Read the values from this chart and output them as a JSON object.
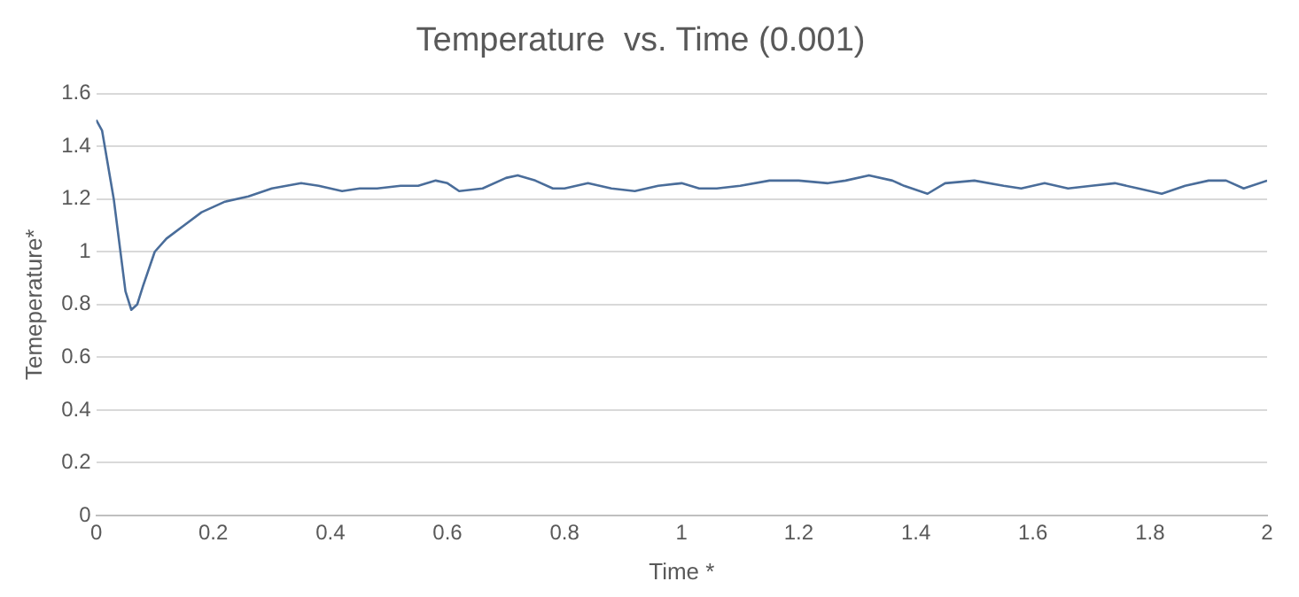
{
  "chart_data": {
    "type": "line",
    "title": "Temperature  vs. Time (0.001)",
    "xlabel": "Time *",
    "ylabel": "Temeperature*",
    "x": [
      0,
      0.01,
      0.03,
      0.05,
      0.06,
      0.07,
      0.08,
      0.1,
      0.12,
      0.15,
      0.18,
      0.22,
      0.26,
      0.3,
      0.35,
      0.38,
      0.42,
      0.45,
      0.48,
      0.52,
      0.55,
      0.58,
      0.6,
      0.62,
      0.66,
      0.7,
      0.72,
      0.75,
      0.78,
      0.8,
      0.84,
      0.88,
      0.92,
      0.96,
      1.0,
      1.03,
      1.06,
      1.1,
      1.15,
      1.2,
      1.25,
      1.28,
      1.32,
      1.36,
      1.38,
      1.42,
      1.45,
      1.5,
      1.55,
      1.58,
      1.62,
      1.66,
      1.7,
      1.74,
      1.78,
      1.82,
      1.86,
      1.9,
      1.93,
      1.96,
      2.0
    ],
    "series": [
      {
        "color": "#4a6d9a",
        "values": [
          1.5,
          1.46,
          1.2,
          0.85,
          0.78,
          0.8,
          0.87,
          1.0,
          1.05,
          1.1,
          1.15,
          1.19,
          1.21,
          1.24,
          1.26,
          1.25,
          1.23,
          1.24,
          1.24,
          1.25,
          1.25,
          1.27,
          1.26,
          1.23,
          1.24,
          1.28,
          1.29,
          1.27,
          1.24,
          1.24,
          1.26,
          1.24,
          1.23,
          1.25,
          1.26,
          1.24,
          1.24,
          1.25,
          1.27,
          1.27,
          1.26,
          1.27,
          1.29,
          1.27,
          1.25,
          1.22,
          1.26,
          1.27,
          1.25,
          1.24,
          1.26,
          1.24,
          1.25,
          1.26,
          1.24,
          1.22,
          1.25,
          1.27,
          1.27,
          1.24,
          1.27
        ]
      }
    ],
    "xlim": [
      0,
      2
    ],
    "xticks": [
      0,
      0.2,
      0.4,
      0.6,
      0.8,
      1,
      1.2,
      1.4,
      1.6,
      1.8,
      2
    ],
    "ylim": [
      0,
      1.6
    ],
    "yticks": [
      0,
      0.2,
      0.4,
      0.6,
      0.8,
      1,
      1.2,
      1.4,
      1.6
    ],
    "grid": "y",
    "marker": "none",
    "line_style": "solid"
  }
}
